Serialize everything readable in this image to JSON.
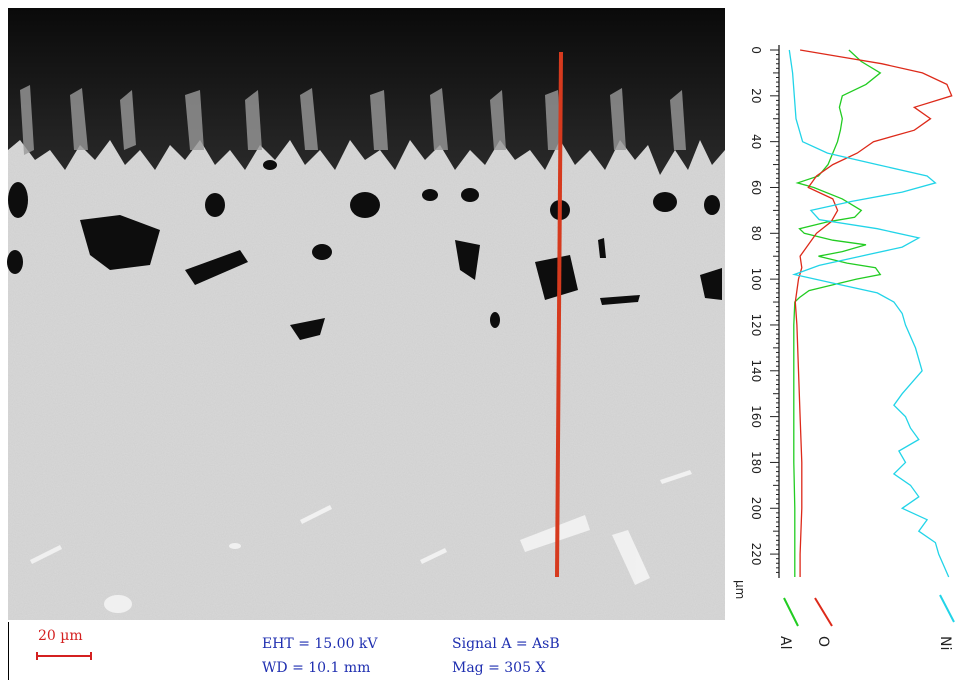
{
  "figure": {
    "scale_bar_label": "20 µm",
    "eht": "EHT = 15.00 kV",
    "wd": "WD = 10.1 mm",
    "signal": "Signal A = AsB",
    "mag": "Mag =   305 X"
  },
  "colors": {
    "al": "#22cc22",
    "o": "#dd2a1a",
    "ni": "#22d4e8",
    "line_scan": "#d63a1e",
    "meta_text": "#1f2fb0",
    "scale_bar": "#d42020"
  },
  "chart_data": {
    "type": "line",
    "orientation": "vertical",
    "ylabel": "µm",
    "ylim": [
      0,
      230
    ],
    "yticks": [
      0,
      20,
      40,
      60,
      80,
      100,
      120,
      140,
      160,
      180,
      200,
      220
    ],
    "series": [
      {
        "name": "Al",
        "color": "#22cc22",
        "depth": [
          0,
          5,
          10,
          15,
          20,
          25,
          30,
          35,
          40,
          45,
          50,
          55,
          58,
          60,
          65,
          70,
          73,
          75,
          78,
          80,
          83,
          85,
          88,
          90,
          93,
          95,
          98,
          100,
          103,
          105,
          108,
          110,
          120,
          140,
          160,
          180,
          200,
          220,
          230
        ],
        "values": [
          0.62,
          0.75,
          0.95,
          0.8,
          0.55,
          0.52,
          0.55,
          0.53,
          0.5,
          0.45,
          0.4,
          0.3,
          0.08,
          0.25,
          0.55,
          0.75,
          0.68,
          0.4,
          0.1,
          0.15,
          0.45,
          0.8,
          0.55,
          0.3,
          0.6,
          0.9,
          0.95,
          0.7,
          0.4,
          0.2,
          0.1,
          0.05,
          0.04,
          0.04,
          0.04,
          0.04,
          0.05,
          0.05,
          0.05
        ]
      },
      {
        "name": "O",
        "color": "#dd2a1a",
        "depth": [
          0,
          3,
          6,
          10,
          15,
          20,
          25,
          30,
          35,
          40,
          45,
          50,
          55,
          60,
          65,
          70,
          75,
          80,
          85,
          90,
          95,
          100,
          105,
          110,
          120,
          140,
          160,
          180,
          200,
          220,
          230
        ],
        "values": [
          0.05,
          0.3,
          0.55,
          0.8,
          0.95,
          0.98,
          0.75,
          0.85,
          0.75,
          0.5,
          0.4,
          0.25,
          0.15,
          0.1,
          0.25,
          0.28,
          0.24,
          0.15,
          0.1,
          0.05,
          0.06,
          0.04,
          0.03,
          0.02,
          0.03,
          0.04,
          0.05,
          0.06,
          0.06,
          0.05,
          0.05
        ]
      },
      {
        "name": "Ni",
        "color": "#22d4e8",
        "depth": [
          0,
          10,
          20,
          30,
          40,
          45,
          50,
          55,
          58,
          62,
          66,
          70,
          74,
          78,
          82,
          86,
          90,
          94,
          98,
          102,
          106,
          110,
          115,
          120,
          130,
          140,
          150,
          155,
          160,
          165,
          170,
          175,
          180,
          185,
          190,
          195,
          200,
          205,
          210,
          215,
          220,
          225,
          230
        ],
        "values": [
          0.02,
          0.04,
          0.05,
          0.06,
          0.1,
          0.25,
          0.55,
          0.85,
          0.9,
          0.7,
          0.4,
          0.15,
          0.2,
          0.55,
          0.8,
          0.7,
          0.45,
          0.2,
          0.05,
          0.3,
          0.55,
          0.65,
          0.7,
          0.72,
          0.78,
          0.82,
          0.7,
          0.65,
          0.72,
          0.75,
          0.8,
          0.68,
          0.72,
          0.65,
          0.75,
          0.8,
          0.7,
          0.85,
          0.8,
          0.9,
          0.92,
          0.95,
          0.98
        ]
      }
    ]
  }
}
